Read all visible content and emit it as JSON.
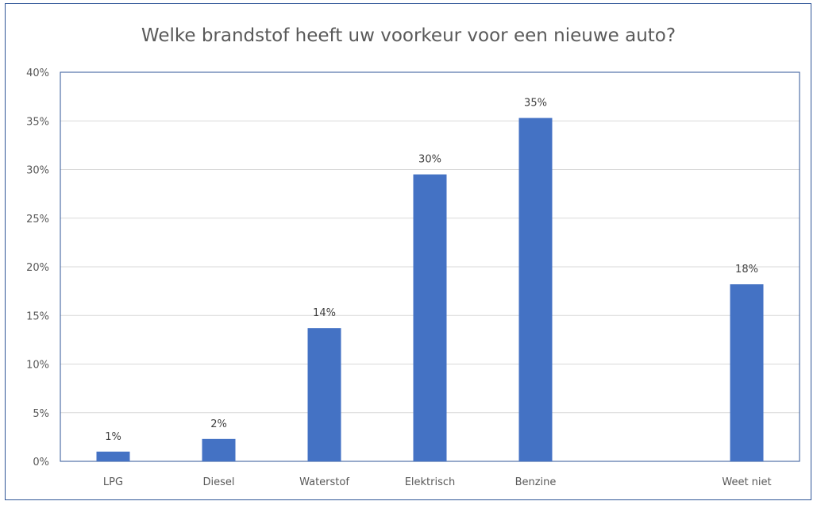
{
  "chart_data": {
    "type": "bar",
    "title": "Welke brandstof heeft uw voorkeur voor een nieuwe auto?",
    "categories": [
      "LPG",
      "Diesel",
      "Waterstof",
      "Elektrisch",
      "Benzine",
      "",
      "Weet niet"
    ],
    "values": [
      1,
      2.3,
      13.7,
      29.5,
      35.3,
      null,
      18.2
    ],
    "data_labels": [
      "1%",
      "2%",
      "14%",
      "30%",
      "35%",
      "",
      "18%"
    ],
    "y_ticks": [
      "0%",
      "5%",
      "10%",
      "15%",
      "20%",
      "25%",
      "30%",
      "35%",
      "40%"
    ],
    "ylim": [
      0,
      40
    ],
    "y_unit": "%",
    "grid": true,
    "legend": "none",
    "bar_color": "#4472c4"
  }
}
